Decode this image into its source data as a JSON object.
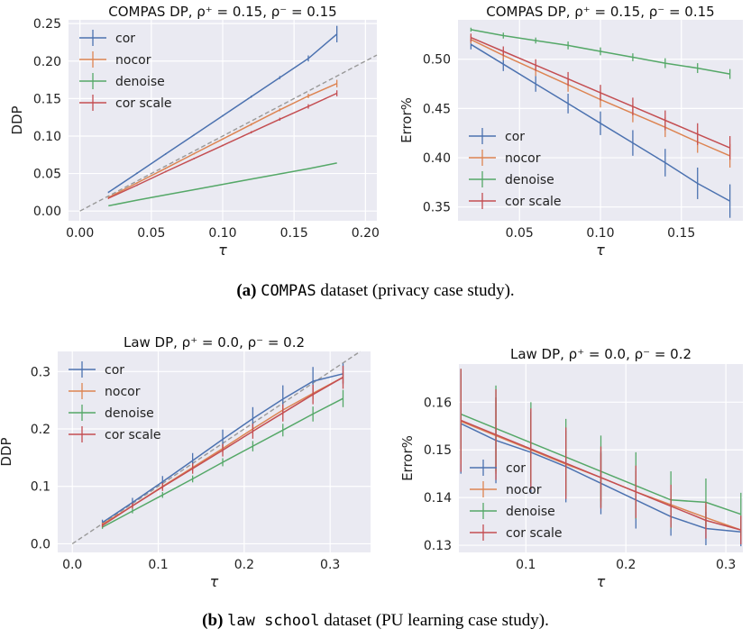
{
  "colors": {
    "cor": "#4c72b0",
    "nocor": "#dd8452",
    "denoise": "#55a868",
    "cor_scale": "#c44e52",
    "background": "#eaeaf2",
    "reference": "#999999"
  },
  "captions": {
    "a": {
      "label": "(a)",
      "name": "COMPAS",
      "rest": "dataset (privacy case study)."
    },
    "b": {
      "label": "(b)",
      "name": "law school",
      "rest": "dataset (PU learning case study)."
    }
  },
  "chart_data": [
    {
      "id": "compas-ddp",
      "type": "line",
      "title": "COMPAS DP, ρ⁺ = 0.15, ρ⁻ = 0.15",
      "xlabel": "τ",
      "ylabel": "DDP",
      "xlim": [
        -0.008,
        0.208
      ],
      "ylim": [
        -0.013,
        0.255
      ],
      "xticks": [
        0.0,
        0.05,
        0.1,
        0.15,
        0.2
      ],
      "xtick_labels": [
        "0.00",
        "0.05",
        "0.10",
        "0.15",
        "0.20"
      ],
      "yticks": [
        0.0,
        0.05,
        0.1,
        0.15,
        0.2,
        0.25
      ],
      "ytick_labels": [
        "0.00",
        "0.05",
        "0.10",
        "0.15",
        "0.20",
        "0.25"
      ],
      "grid": true,
      "legend": "upper-left",
      "reference_line": true,
      "x": [
        0.02,
        0.04,
        0.06,
        0.08,
        0.1,
        0.12,
        0.14,
        0.16,
        0.18
      ],
      "series": [
        {
          "name": "cor",
          "key": "cor",
          "values": [
            0.025,
            0.0505,
            0.076,
            0.1015,
            0.127,
            0.1525,
            0.178,
            0.2035,
            0.236
          ],
          "errors": [
            0.001,
            0.001,
            0.001,
            0.001,
            0.001,
            0.0015,
            0.002,
            0.004,
            0.011
          ]
        },
        {
          "name": "nocor",
          "key": "nocor",
          "values": [
            0.018,
            0.0375,
            0.057,
            0.0765,
            0.096,
            0.1155,
            0.135,
            0.1535,
            0.17
          ],
          "errors": [
            0.001,
            0.001,
            0.001,
            0.001,
            0.001,
            0.0015,
            0.002,
            0.003,
            0.005
          ]
        },
        {
          "name": "denoise",
          "key": "denoise",
          "values": [
            0.007,
            0.0145,
            0.0215,
            0.0285,
            0.0355,
            0.0425,
            0.0495,
            0.0565,
            0.064
          ],
          "errors": [
            0,
            0,
            0,
            0,
            0,
            0,
            0,
            0,
            0
          ]
        },
        {
          "name": "cor scale",
          "key": "cor_scale",
          "values": [
            0.017,
            0.0345,
            0.0525,
            0.07,
            0.0875,
            0.105,
            0.1225,
            0.1395,
            0.157
          ],
          "errors": [
            0.001,
            0.001,
            0.001,
            0.001,
            0.001,
            0.0015,
            0.002,
            0.003,
            0.004
          ]
        }
      ]
    },
    {
      "id": "compas-error",
      "type": "line",
      "title": "COMPAS DP, ρ⁺ = 0.15, ρ⁻ = 0.15",
      "xlabel": "τ",
      "ylabel": "Error%",
      "xlim": [
        0.012,
        0.188
      ],
      "ylim": [
        0.336,
        0.54
      ],
      "xticks": [
        0.05,
        0.1,
        0.15
      ],
      "xtick_labels": [
        "0.05",
        "0.10",
        "0.15"
      ],
      "yticks": [
        0.35,
        0.4,
        0.45,
        0.5
      ],
      "ytick_labels": [
        "0.35",
        "0.40",
        "0.45",
        "0.50"
      ],
      "grid": true,
      "legend": "lower-left",
      "reference_line": false,
      "x": [
        0.02,
        0.04,
        0.06,
        0.08,
        0.1,
        0.12,
        0.14,
        0.16,
        0.18
      ],
      "series": [
        {
          "name": "cor",
          "key": "cor",
          "values": [
            0.515,
            0.495,
            0.475,
            0.455,
            0.435,
            0.415,
            0.395,
            0.374,
            0.356
          ],
          "errors": [
            0.005,
            0.007,
            0.008,
            0.01,
            0.012,
            0.013,
            0.014,
            0.016,
            0.017
          ]
        },
        {
          "name": "nocor",
          "key": "nocor",
          "values": [
            0.52,
            0.504,
            0.489,
            0.474,
            0.459,
            0.445,
            0.431,
            0.416,
            0.402
          ],
          "errors": [
            0.004,
            0.005,
            0.006,
            0.007,
            0.008,
            0.009,
            0.01,
            0.011,
            0.012
          ]
        },
        {
          "name": "denoise",
          "key": "denoise",
          "values": [
            0.53,
            0.524,
            0.519,
            0.514,
            0.508,
            0.502,
            0.496,
            0.491,
            0.485
          ],
          "errors": [
            0.002,
            0.003,
            0.003,
            0.004,
            0.004,
            0.004,
            0.005,
            0.005,
            0.005
          ]
        },
        {
          "name": "cor scale",
          "key": "cor_scale",
          "values": [
            0.522,
            0.508,
            0.494,
            0.48,
            0.466,
            0.452,
            0.438,
            0.424,
            0.41
          ],
          "errors": [
            0.004,
            0.005,
            0.006,
            0.007,
            0.008,
            0.009,
            0.01,
            0.011,
            0.012
          ]
        }
      ]
    },
    {
      "id": "law-ddp",
      "type": "line",
      "title": "Law DP, ρ⁺ = 0.0, ρ⁻ = 0.2",
      "xlabel": "τ",
      "ylabel": "DDP",
      "xlim": [
        -0.017,
        0.347
      ],
      "ylim": [
        -0.015,
        0.335
      ],
      "xticks": [
        0.0,
        0.1,
        0.2,
        0.3
      ],
      "xtick_labels": [
        "0.0",
        "0.1",
        "0.2",
        "0.3"
      ],
      "yticks": [
        0.0,
        0.1,
        0.2,
        0.3
      ],
      "ytick_labels": [
        "0.0",
        "0.1",
        "0.2",
        "0.3"
      ],
      "grid": true,
      "legend": "upper-left",
      "reference_line": true,
      "x": [
        0.035,
        0.07,
        0.105,
        0.14,
        0.175,
        0.21,
        0.245,
        0.28,
        0.315
      ],
      "series": [
        {
          "name": "cor",
          "key": "cor",
          "values": [
            0.037,
            0.072,
            0.108,
            0.145,
            0.182,
            0.218,
            0.252,
            0.283,
            0.296
          ],
          "errors": [
            0.005,
            0.008,
            0.01,
            0.013,
            0.017,
            0.02,
            0.024,
            0.025,
            0.018
          ]
        },
        {
          "name": "nocor",
          "key": "nocor",
          "values": [
            0.034,
            0.066,
            0.1,
            0.133,
            0.166,
            0.2,
            0.233,
            0.262,
            0.29
          ],
          "errors": [
            0.003,
            0.004,
            0.005,
            0.006,
            0.007,
            0.008,
            0.009,
            0.01,
            0.01
          ]
        },
        {
          "name": "denoise",
          "key": "denoise",
          "values": [
            0.029,
            0.057,
            0.085,
            0.113,
            0.142,
            0.17,
            0.198,
            0.226,
            0.253
          ],
          "errors": [
            0.003,
            0.004,
            0.005,
            0.006,
            0.007,
            0.009,
            0.011,
            0.013,
            0.015
          ]
        },
        {
          "name": "cor scale",
          "key": "cor_scale",
          "values": [
            0.032,
            0.066,
            0.099,
            0.131,
            0.163,
            0.196,
            0.228,
            0.26,
            0.29
          ],
          "errors": [
            0.003,
            0.005,
            0.007,
            0.009,
            0.011,
            0.013,
            0.015,
            0.017,
            0.02
          ]
        }
      ]
    },
    {
      "id": "law-error",
      "type": "line",
      "title": "Law DP, ρ⁺ = 0.0, ρ⁻ = 0.2",
      "xlabel": "τ",
      "ylabel": "Error%",
      "xlim": [
        0.033,
        0.317
      ],
      "ylim": [
        0.1285,
        0.168
      ],
      "xticks": [
        0.1,
        0.2,
        0.3
      ],
      "xtick_labels": [
        "0.1",
        "0.2",
        "0.3"
      ],
      "yticks": [
        0.13,
        0.14,
        0.15,
        0.16
      ],
      "ytick_labels": [
        "0.13",
        "0.14",
        "0.15",
        "0.16"
      ],
      "grid": true,
      "legend": "lower-left",
      "reference_line": false,
      "x": [
        0.035,
        0.07,
        0.105,
        0.14,
        0.175,
        0.21,
        0.245,
        0.28,
        0.315
      ],
      "series": [
        {
          "name": "cor",
          "key": "cor",
          "values": [
            0.1555,
            0.152,
            0.1495,
            0.1465,
            0.143,
            0.1395,
            0.136,
            0.1335,
            0.1328
          ],
          "errors": [
            0.0105,
            0.009,
            0.0085,
            0.0075,
            0.0065,
            0.006,
            0.004,
            0.0035,
            0.003
          ]
        },
        {
          "name": "nocor",
          "key": "nocor",
          "values": [
            0.156,
            0.153,
            0.15,
            0.147,
            0.1442,
            0.1412,
            0.1385,
            0.1358,
            0.1332
          ],
          "errors": [
            0.009,
            0.008,
            0.007,
            0.006,
            0.005,
            0.004,
            0.003,
            0.0025,
            0.002
          ]
        },
        {
          "name": "denoise",
          "key": "denoise",
          "values": [
            0.1575,
            0.1545,
            0.1515,
            0.1485,
            0.1455,
            0.1425,
            0.1395,
            0.139,
            0.1365
          ],
          "errors": [
            0.0095,
            0.009,
            0.0085,
            0.008,
            0.0075,
            0.007,
            0.006,
            0.005,
            0.0045
          ]
        },
        {
          "name": "cor scale",
          "key": "cor_scale",
          "values": [
            0.1562,
            0.1532,
            0.1502,
            0.1472,
            0.1442,
            0.1412,
            0.1382,
            0.1352,
            0.1332
          ],
          "errors": [
            0.0108,
            0.0095,
            0.0085,
            0.0075,
            0.0065,
            0.0055,
            0.0045,
            0.0038,
            0.003
          ]
        }
      ]
    }
  ]
}
